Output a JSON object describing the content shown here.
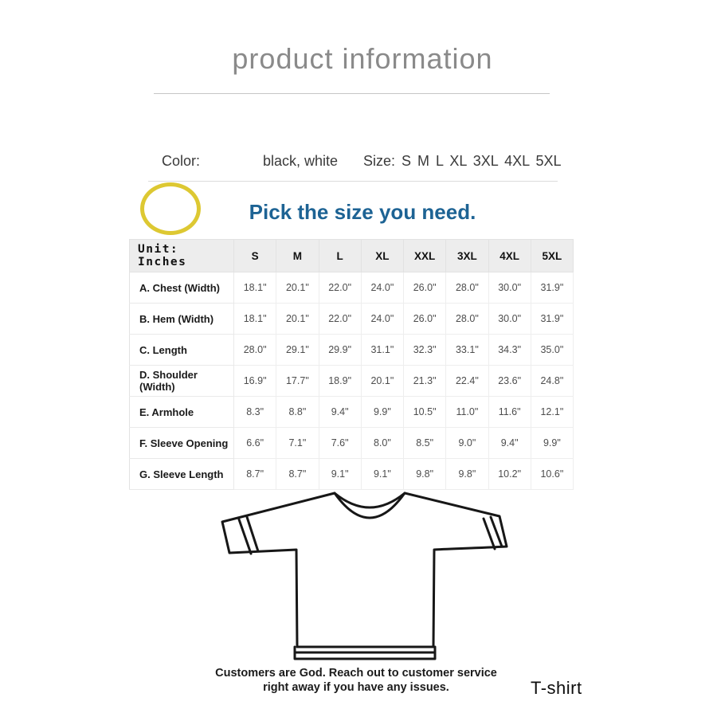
{
  "page": {
    "title": "product information",
    "product_label": "T-shirt",
    "footer_lines": [
      "Customers are God. Reach out to customer service",
      "right away if you have any issues."
    ]
  },
  "options": {
    "color_label": "Color:",
    "color_value": "black, white",
    "size_label": "Size:",
    "size_value": "S M L XL 3XL 4XL 5XL",
    "pick_size_heading": "Pick the size you need."
  },
  "size_chart": {
    "unit_label": "Unit: Inches",
    "columns": [
      "S",
      "M",
      "L",
      "XL",
      "XXL",
      "3XL",
      "4XL",
      "5XL"
    ],
    "rows": [
      {
        "label": "A. Chest (Width)",
        "values": [
          "18.1\"",
          "20.1\"",
          "22.0\"",
          "24.0\"",
          "26.0\"",
          "28.0\"",
          "30.0\"",
          "31.9\""
        ]
      },
      {
        "label": "B. Hem (Width)",
        "values": [
          "18.1\"",
          "20.1\"",
          "22.0\"",
          "24.0\"",
          "26.0\"",
          "28.0\"",
          "30.0\"",
          "31.9\""
        ]
      },
      {
        "label": "C. Length",
        "values": [
          "28.0\"",
          "29.1\"",
          "29.9\"",
          "31.1\"",
          "32.3\"",
          "33.1\"",
          "34.3\"",
          "35.0\""
        ]
      },
      {
        "label": "D. Shoulder (Width)",
        "values": [
          "16.9\"",
          "17.7\"",
          "18.9\"",
          "20.1\"",
          "21.3\"",
          "22.4\"",
          "23.6\"",
          "24.8\""
        ]
      },
      {
        "label": "E. Armhole",
        "values": [
          "8.3\"",
          "8.8\"",
          "9.4\"",
          "9.9\"",
          "10.5\"",
          "11.0\"",
          "11.6\"",
          "12.1\""
        ]
      },
      {
        "label": "F. Sleeve Opening",
        "values": [
          "6.6\"",
          "7.1\"",
          "7.6\"",
          "8.0\"",
          "8.5\"",
          "9.0\"",
          "9.4\"",
          "9.9\""
        ]
      },
      {
        "label": "G. Sleeve Length",
        "values": [
          "8.7\"",
          "8.7\"",
          "9.1\"",
          "9.1\"",
          "9.8\"",
          "9.8\"",
          "10.2\"",
          "10.6\""
        ]
      }
    ]
  },
  "colors": {
    "accent_blue": "#1d6394",
    "annotation_yellow": "#ddc832",
    "title_gray": "#8a8a8a"
  }
}
